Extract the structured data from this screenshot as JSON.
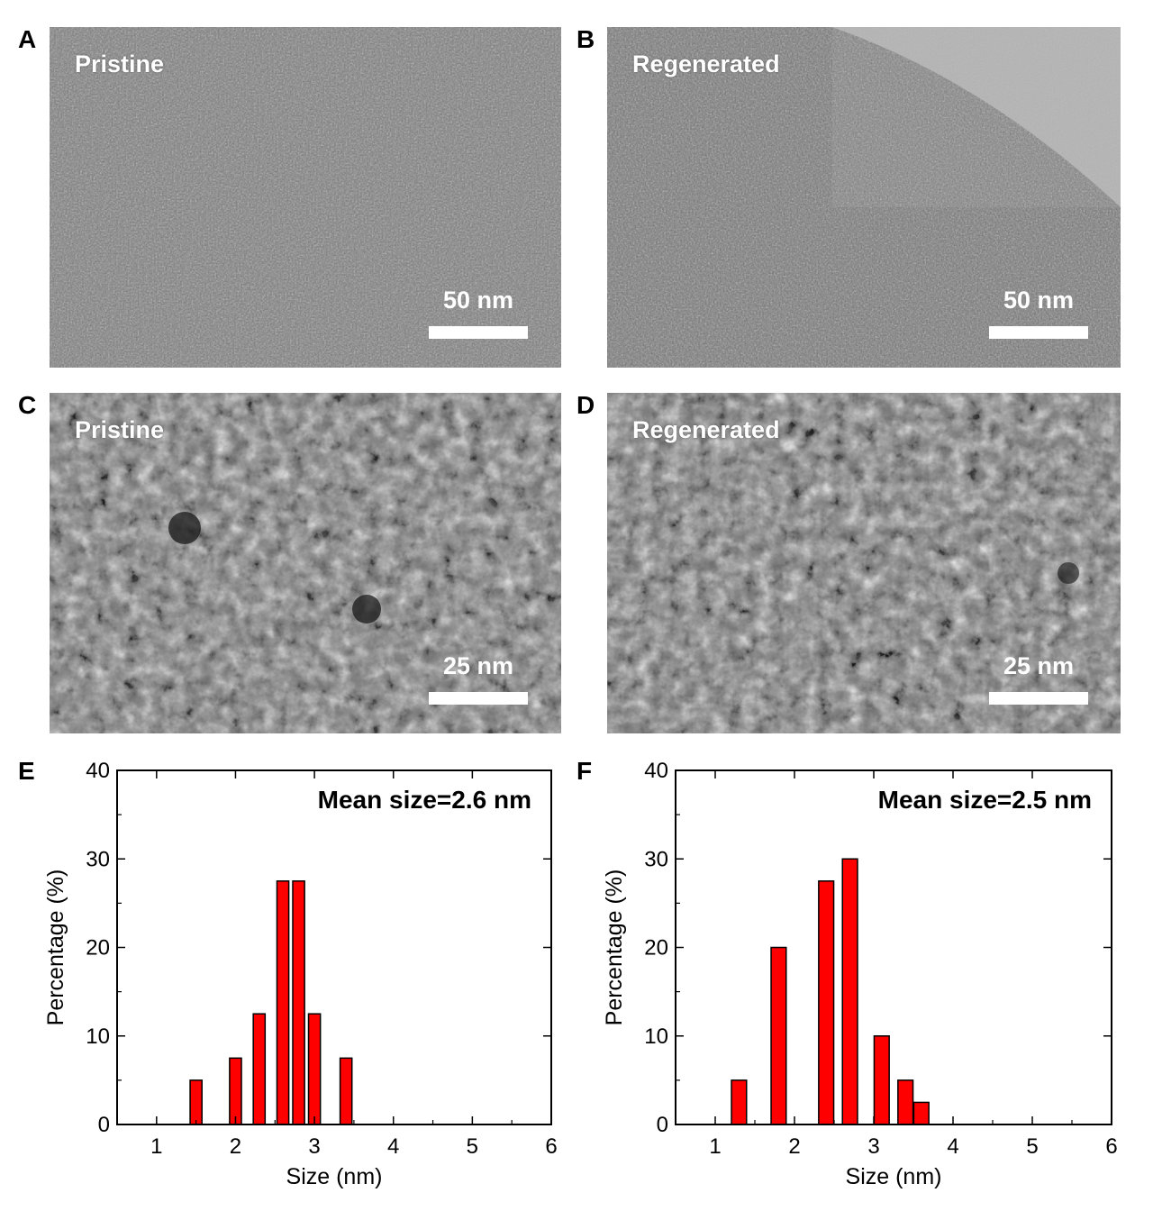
{
  "panels": {
    "A": {
      "letter": "A",
      "label": "Pristine",
      "scale": "50 nm",
      "tone": "bright-field"
    },
    "B": {
      "letter": "B",
      "label": "Regenerated",
      "scale": "50 nm",
      "tone": "bright-field"
    },
    "C": {
      "letter": "C",
      "label": "Pristine",
      "scale": "25 nm",
      "tone": "dark-field"
    },
    "D": {
      "letter": "D",
      "label": "Regenerated",
      "scale": "25 nm",
      "tone": "dark-field"
    },
    "E": {
      "letter": "E"
    },
    "F": {
      "letter": "F"
    }
  },
  "colors": {
    "bar_fill": "#ff0000",
    "bar_stroke": "#000000",
    "axis": "#000000",
    "label_text": "#ffffff"
  },
  "chart_data": [
    {
      "type": "bar",
      "panel": "E",
      "annotation": "Mean size=2.6 nm",
      "xlabel": "Size (nm)",
      "ylabel": "Percentage (%)",
      "xlim": [
        0.5,
        6
      ],
      "ylim": [
        0,
        40
      ],
      "xticks": [
        "1",
        "2",
        "3",
        "4",
        "5",
        "6"
      ],
      "yticks": [
        "0",
        "10",
        "20",
        "30",
        "40"
      ],
      "bar_width": 0.15,
      "bars": [
        {
          "x": 1.5,
          "y": 5
        },
        {
          "x": 2.0,
          "y": 7.5
        },
        {
          "x": 2.3,
          "y": 12.5
        },
        {
          "x": 2.6,
          "y": 27.5
        },
        {
          "x": 2.8,
          "y": 27.5
        },
        {
          "x": 3.0,
          "y": 12.5
        },
        {
          "x": 3.4,
          "y": 7.5
        }
      ]
    },
    {
      "type": "bar",
      "panel": "F",
      "annotation": "Mean size=2.5 nm",
      "xlabel": "Size (nm)",
      "ylabel": "Percentage (%)",
      "xlim": [
        0.5,
        6
      ],
      "ylim": [
        0,
        40
      ],
      "xticks": [
        "1",
        "2",
        "3",
        "4",
        "5",
        "6"
      ],
      "yticks": [
        "0",
        "10",
        "20",
        "30",
        "40"
      ],
      "bar_width": 0.19,
      "bars": [
        {
          "x": 1.3,
          "y": 5
        },
        {
          "x": 1.8,
          "y": 20
        },
        {
          "x": 2.4,
          "y": 27.5
        },
        {
          "x": 2.7,
          "y": 30
        },
        {
          "x": 3.1,
          "y": 10
        },
        {
          "x": 3.4,
          "y": 5
        },
        {
          "x": 3.6,
          "y": 2.5
        }
      ]
    }
  ]
}
